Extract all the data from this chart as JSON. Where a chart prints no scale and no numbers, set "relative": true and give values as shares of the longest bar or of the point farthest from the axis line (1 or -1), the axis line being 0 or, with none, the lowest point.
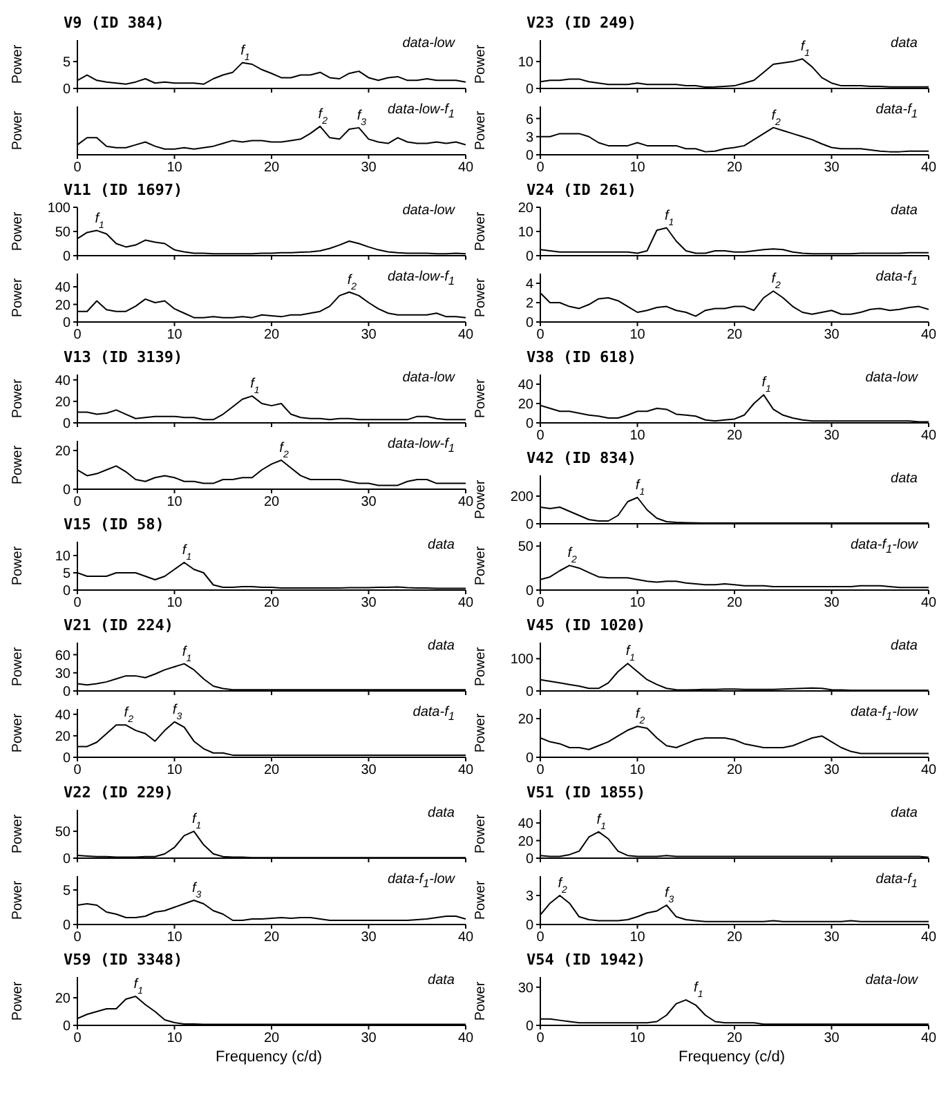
{
  "chart_data": [
    {
      "type": "line",
      "title": "V9 (ID 384)",
      "ylabel": "Power",
      "tick_labels": "y",
      "xlim": [
        0,
        40
      ],
      "xticks": [
        0,
        10,
        20,
        30,
        40
      ],
      "ylim": [
        0,
        9
      ],
      "yticks": [
        0,
        5
      ],
      "annotations": [
        "data-low",
        {
          "text": "f$_{1}$",
          "x": 17,
          "y": 4.8
        }
      ],
      "x": [
        0,
        1,
        2,
        3,
        4,
        5,
        6,
        7,
        8,
        9,
        10,
        11,
        12,
        13,
        14,
        15,
        16,
        17,
        18,
        19,
        20,
        21,
        22,
        23,
        24,
        25,
        26,
        27,
        28,
        29,
        30,
        31,
        32,
        33,
        34,
        35,
        36,
        37,
        38,
        39,
        40
      ],
      "color": "#000000",
      "values": [
        1.5,
        2.5,
        1.5,
        1.2,
        1,
        0.8,
        1.2,
        1.8,
        1,
        1.2,
        1,
        1,
        1,
        0.8,
        1.8,
        2.5,
        3,
        4.8,
        4.5,
        3.5,
        2.8,
        2,
        2,
        2.5,
        2.5,
        3,
        2,
        1.8,
        2.8,
        3.2,
        2,
        1.5,
        2,
        2.2,
        1.5,
        1.5,
        1.8,
        1.5,
        1.5,
        1.5,
        1.2
      ]
    },
    {
      "type": "line",
      "ylabel": "Power",
      "relative": true,
      "tick_labels": "x",
      "xlim": [
        0,
        40
      ],
      "xticks": [
        0,
        10,
        20,
        30,
        40
      ],
      "annotations": [
        "data-low-f$_{1}$",
        {
          "text": "f$_{2}$",
          "x": 25,
          "y": 1
        },
        {
          "text": "f$_{3}$",
          "x": 29,
          "y": 0.95
        }
      ],
      "x": [
        0,
        1,
        2,
        3,
        4,
        5,
        6,
        7,
        8,
        9,
        10,
        11,
        12,
        13,
        14,
        15,
        16,
        17,
        18,
        19,
        20,
        21,
        22,
        23,
        24,
        25,
        26,
        27,
        28,
        29,
        30,
        31,
        32,
        33,
        34,
        35,
        36,
        37,
        38,
        39,
        40
      ],
      "color": "#000000",
      "values": [
        0.35,
        0.6,
        0.6,
        0.3,
        0.25,
        0.25,
        0.35,
        0.45,
        0.3,
        0.2,
        0.2,
        0.25,
        0.2,
        0.25,
        0.3,
        0.4,
        0.5,
        0.45,
        0.5,
        0.5,
        0.45,
        0.45,
        0.5,
        0.55,
        0.75,
        1,
        0.6,
        0.55,
        0.9,
        0.95,
        0.55,
        0.45,
        0.4,
        0.6,
        0.45,
        0.4,
        0.4,
        0.45,
        0.4,
        0.45,
        0.35
      ]
    },
    {
      "type": "line",
      "title": "V11 (ID 1697)",
      "ylabel": "Power",
      "tick_labels": "y",
      "xlim": [
        0,
        40
      ],
      "xticks": [
        0,
        10,
        20,
        30,
        40
      ],
      "ylim": [
        0,
        100
      ],
      "yticks": [
        0,
        50,
        100
      ],
      "annotations": [
        "data-low",
        {
          "text": "f$_{1}$",
          "x": 2,
          "y": 52
        }
      ],
      "x": [
        0,
        1,
        2,
        3,
        4,
        5,
        6,
        7,
        8,
        9,
        10,
        11,
        12,
        13,
        14,
        15,
        16,
        17,
        18,
        19,
        20,
        21,
        22,
        23,
        24,
        25,
        26,
        27,
        28,
        29,
        30,
        31,
        32,
        33,
        34,
        35,
        36,
        37,
        38,
        39,
        40
      ],
      "color": "#000000",
      "values": [
        35,
        48,
        52,
        45,
        25,
        18,
        22,
        32,
        28,
        25,
        12,
        8,
        5,
        5,
        4,
        4,
        4,
        4,
        4,
        5,
        5,
        6,
        6,
        7,
        8,
        10,
        15,
        22,
        30,
        25,
        18,
        12,
        8,
        6,
        5,
        5,
        5,
        4,
        4,
        5,
        4
      ]
    },
    {
      "type": "line",
      "ylabel": "Power",
      "xlim": [
        0,
        40
      ],
      "xticks": [
        0,
        10,
        20,
        30,
        40
      ],
      "ylim": [
        0,
        55
      ],
      "yticks": [
        0,
        20,
        40
      ],
      "annotations": [
        "data-low-f$_{1}$",
        {
          "text": "f$_{2}$",
          "x": 28,
          "y": 34
        }
      ],
      "x": [
        0,
        1,
        2,
        3,
        4,
        5,
        6,
        7,
        8,
        9,
        10,
        11,
        12,
        13,
        14,
        15,
        16,
        17,
        18,
        19,
        20,
        21,
        22,
        23,
        24,
        25,
        26,
        27,
        28,
        29,
        30,
        31,
        32,
        33,
        34,
        35,
        36,
        37,
        38,
        39,
        40
      ],
      "color": "#000000",
      "values": [
        12,
        12,
        24,
        14,
        12,
        12,
        18,
        26,
        22,
        24,
        15,
        10,
        5,
        5,
        6,
        5,
        5,
        6,
        5,
        8,
        7,
        6,
        8,
        8,
        10,
        12,
        18,
        30,
        34,
        30,
        22,
        15,
        10,
        8,
        8,
        8,
        8,
        10,
        6,
        6,
        5
      ]
    },
    {
      "type": "line",
      "title": "V13 (ID 3139)",
      "ylabel": "Power",
      "tick_labels": "y",
      "xlim": [
        0,
        40
      ],
      "xticks": [
        0,
        10,
        20,
        30,
        40
      ],
      "ylim": [
        0,
        45
      ],
      "yticks": [
        0,
        20,
        40
      ],
      "annotations": [
        "data-low",
        {
          "text": "f$_{1}$",
          "x": 18,
          "y": 25
        }
      ],
      "x": [
        0,
        1,
        2,
        3,
        4,
        5,
        6,
        7,
        8,
        9,
        10,
        11,
        12,
        13,
        14,
        15,
        16,
        17,
        18,
        19,
        20,
        21,
        22,
        23,
        24,
        25,
        26,
        27,
        28,
        29,
        30,
        31,
        32,
        33,
        34,
        35,
        36,
        37,
        38,
        39,
        40
      ],
      "color": "#000000",
      "values": [
        10,
        10,
        8,
        9,
        12,
        8,
        4,
        5,
        6,
        6,
        6,
        5,
        5,
        3,
        3,
        8,
        15,
        22,
        25,
        18,
        16,
        18,
        8,
        5,
        4,
        4,
        3,
        4,
        4,
        3,
        3,
        3,
        3,
        3,
        3,
        6,
        6,
        4,
        3,
        3,
        3
      ]
    },
    {
      "type": "line",
      "ylabel": "Power",
      "xlim": [
        0,
        40
      ],
      "xticks": [
        0,
        10,
        20,
        30,
        40
      ],
      "ylim": [
        0,
        25
      ],
      "yticks": [
        0,
        20
      ],
      "annotations": [
        "data-low-f$_{1}$",
        {
          "text": "f$_{2}$",
          "x": 21,
          "y": 15
        }
      ],
      "x": [
        0,
        1,
        2,
        3,
        4,
        5,
        6,
        7,
        8,
        9,
        10,
        11,
        12,
        13,
        14,
        15,
        16,
        17,
        18,
        19,
        20,
        21,
        22,
        23,
        24,
        25,
        26,
        27,
        28,
        29,
        30,
        31,
        32,
        33,
        34,
        35,
        36,
        37,
        38,
        39,
        40
      ],
      "color": "#000000",
      "values": [
        10,
        7,
        8,
        10,
        12,
        9,
        5,
        4,
        6,
        7,
        6,
        4,
        4,
        3,
        3,
        5,
        5,
        6,
        6,
        10,
        13,
        15,
        11,
        7,
        5,
        5,
        5,
        5,
        4,
        3,
        3,
        2,
        2,
        2,
        4,
        5,
        5,
        3,
        3,
        3,
        3
      ]
    },
    {
      "type": "line",
      "title": "V15 (ID 58)",
      "ylabel": "Power",
      "xlim": [
        0,
        40
      ],
      "xticks": [
        0,
        10,
        20,
        30,
        40
      ],
      "ylim": [
        0,
        14
      ],
      "yticks": [
        0,
        5,
        10
      ],
      "annotations": [
        "data",
        {
          "text": "f$_{1}$",
          "x": 11,
          "y": 8
        }
      ],
      "x": [
        0,
        1,
        2,
        3,
        4,
        5,
        6,
        7,
        8,
        9,
        10,
        11,
        12,
        13,
        14,
        15,
        16,
        17,
        18,
        19,
        20,
        21,
        22,
        23,
        24,
        25,
        26,
        27,
        28,
        29,
        30,
        31,
        32,
        33,
        34,
        35,
        36,
        37,
        38,
        39,
        40
      ],
      "color": "#000000",
      "values": [
        5,
        4,
        4,
        4,
        5,
        5,
        5,
        4,
        3,
        4,
        6,
        8,
        6,
        5,
        1.5,
        0.8,
        0.8,
        1,
        1,
        0.8,
        0.8,
        0.6,
        0.6,
        0.6,
        0.6,
        0.6,
        0.6,
        0.6,
        0.7,
        0.7,
        0.7,
        0.8,
        0.8,
        0.9,
        0.7,
        0.6,
        0.6,
        0.5,
        0.5,
        0.5,
        0.5
      ]
    },
    {
      "type": "line",
      "title": "V21 (ID 224)",
      "ylabel": "Power",
      "tick_labels": "y",
      "xlim": [
        0,
        40
      ],
      "xticks": [
        0,
        10,
        20,
        30,
        40
      ],
      "ylim": [
        0,
        80
      ],
      "yticks": [
        0,
        30,
        60
      ],
      "annotations": [
        "data",
        {
          "text": "f$_{1}$",
          "x": 11,
          "y": 45
        }
      ],
      "x": [
        0,
        1,
        2,
        3,
        4,
        5,
        6,
        7,
        8,
        9,
        10,
        11,
        12,
        13,
        14,
        15,
        16,
        17,
        18,
        19,
        20,
        21,
        22,
        23,
        24,
        25,
        26,
        27,
        28,
        29,
        30,
        31,
        32,
        33,
        34,
        35,
        36,
        37,
        38,
        39,
        40
      ],
      "color": "#000000",
      "values": [
        12,
        10,
        12,
        15,
        20,
        25,
        25,
        22,
        28,
        35,
        40,
        45,
        35,
        20,
        8,
        4,
        2,
        2,
        2,
        2,
        2,
        2,
        2,
        2,
        2,
        2,
        2,
        2,
        2,
        2,
        2,
        2,
        2,
        2,
        2,
        2,
        2,
        2,
        2,
        2,
        2
      ]
    },
    {
      "type": "line",
      "ylabel": "Power",
      "xlim": [
        0,
        40
      ],
      "xticks": [
        0,
        10,
        20,
        30,
        40
      ],
      "ylim": [
        0,
        45
      ],
      "yticks": [
        0,
        20,
        40
      ],
      "annotations": [
        "data-f$_{1}$",
        {
          "text": "f$_{2}$",
          "x": 5,
          "y": 30
        },
        {
          "text": "f$_{3}$",
          "x": 10,
          "y": 33
        }
      ],
      "x": [
        0,
        1,
        2,
        3,
        4,
        5,
        6,
        7,
        8,
        9,
        10,
        11,
        12,
        13,
        14,
        15,
        16,
        17,
        18,
        19,
        20,
        21,
        22,
        23,
        24,
        25,
        26,
        27,
        28,
        29,
        30,
        31,
        32,
        33,
        34,
        35,
        36,
        37,
        38,
        39,
        40
      ],
      "color": "#000000",
      "values": [
        10,
        10,
        14,
        22,
        30,
        30,
        25,
        22,
        15,
        25,
        33,
        28,
        15,
        8,
        4,
        4,
        2,
        2,
        2,
        2,
        2,
        2,
        2,
        2,
        2,
        2,
        2,
        2,
        2,
        2,
        2,
        2,
        2,
        2,
        2,
        2,
        2,
        2,
        2,
        2,
        2
      ]
    },
    {
      "type": "line",
      "title": "V22 (ID 229)",
      "ylabel": "Power",
      "tick_labels": "y",
      "xlim": [
        0,
        40
      ],
      "xticks": [
        0,
        10,
        20,
        30,
        40
      ],
      "ylim": [
        0,
        90
      ],
      "yticks": [
        0,
        50
      ],
      "annotations": [
        "data",
        {
          "text": "f$_{1}$",
          "x": 12,
          "y": 50
        }
      ],
      "x": [
        0,
        1,
        2,
        3,
        4,
        5,
        6,
        7,
        8,
        9,
        10,
        11,
        12,
        13,
        14,
        15,
        16,
        17,
        18,
        19,
        20,
        21,
        22,
        23,
        24,
        25,
        26,
        27,
        28,
        29,
        30,
        31,
        32,
        33,
        34,
        35,
        36,
        37,
        38,
        39,
        40
      ],
      "color": "#000000",
      "values": [
        5,
        4,
        3,
        3,
        2,
        2,
        2,
        3,
        3,
        8,
        20,
        42,
        50,
        25,
        8,
        3,
        2,
        2,
        1,
        1,
        1,
        1,
        1,
        1,
        1,
        1,
        1,
        1,
        1,
        1,
        1,
        1,
        1,
        1,
        1,
        1,
        1,
        1,
        1,
        1,
        1
      ]
    },
    {
      "type": "line",
      "ylabel": "Power",
      "xlim": [
        0,
        40
      ],
      "xticks": [
        0,
        10,
        20,
        30,
        40
      ],
      "ylim": [
        0,
        7
      ],
      "yticks": [
        0,
        5
      ],
      "annotations": [
        "data-f$_{1}$-low",
        {
          "text": "f$_{3}$",
          "x": 12,
          "y": 3.5
        }
      ],
      "x": [
        0,
        1,
        2,
        3,
        4,
        5,
        6,
        7,
        8,
        9,
        10,
        11,
        12,
        13,
        14,
        15,
        16,
        17,
        18,
        19,
        20,
        21,
        22,
        23,
        24,
        25,
        26,
        27,
        28,
        29,
        30,
        31,
        32,
        33,
        34,
        35,
        36,
        37,
        38,
        39,
        40
      ],
      "color": "#000000",
      "values": [
        2.8,
        3,
        2.8,
        1.8,
        1.5,
        1,
        1,
        1.2,
        1.8,
        2,
        2.5,
        3,
        3.5,
        3,
        2,
        1.5,
        0.6,
        0.6,
        0.8,
        0.8,
        0.9,
        1,
        0.9,
        1,
        1,
        0.8,
        0.6,
        0.6,
        0.6,
        0.6,
        0.6,
        0.6,
        0.6,
        0.6,
        0.6,
        0.7,
        0.8,
        1,
        1.2,
        1.2,
        0.8
      ]
    },
    {
      "type": "line",
      "title": "V59 (ID 3348)",
      "ylabel": "Power",
      "xlabel": "Frequency (c/d)",
      "xlim": [
        0,
        40
      ],
      "xticks": [
        0,
        10,
        20,
        30,
        40
      ],
      "ylim": [
        0,
        35
      ],
      "yticks": [
        0,
        20
      ],
      "annotations": [
        "data",
        {
          "text": "f$_{1}$",
          "x": 6,
          "y": 21
        }
      ],
      "x": [
        0,
        1,
        2,
        3,
        4,
        5,
        6,
        7,
        8,
        9,
        10,
        11,
        12,
        13,
        14,
        15,
        16,
        17,
        18,
        19,
        20,
        21,
        22,
        23,
        24,
        25,
        26,
        27,
        28,
        29,
        30,
        31,
        32,
        33,
        34,
        35,
        36,
        37,
        38,
        39,
        40
      ],
      "color": "#000000",
      "values": [
        5,
        8,
        10,
        12,
        12,
        19,
        21,
        15,
        10,
        4,
        2,
        1,
        1,
        0.8,
        0.8,
        0.8,
        0.8,
        0.8,
        0.8,
        0.8,
        0.8,
        0.8,
        0.8,
        0.8,
        0.8,
        0.8,
        0.8,
        0.8,
        0.8,
        0.8,
        0.8,
        0.8,
        0.8,
        0.8,
        0.8,
        0.8,
        0.8,
        0.8,
        0.8,
        0.8,
        0.8
      ]
    },
    {
      "type": "line",
      "title": "V23 (ID 249)",
      "ylabel": "Power",
      "tick_labels": "y",
      "xlim": [
        0,
        40
      ],
      "xticks": [
        0,
        10,
        20,
        30,
        40
      ],
      "ylim": [
        0,
        18
      ],
      "yticks": [
        0,
        10
      ],
      "annotations": [
        "data",
        {
          "text": "f$_{1}$",
          "x": 27,
          "y": 11
        }
      ],
      "x": [
        0,
        1,
        2,
        3,
        4,
        5,
        6,
        7,
        8,
        9,
        10,
        11,
        12,
        13,
        14,
        15,
        16,
        17,
        18,
        19,
        20,
        21,
        22,
        23,
        24,
        25,
        26,
        27,
        28,
        29,
        30,
        31,
        32,
        33,
        34,
        35,
        36,
        37,
        38,
        39,
        40
      ],
      "color": "#000000",
      "values": [
        2.5,
        3,
        3,
        3.5,
        3.5,
        2.5,
        2,
        1.5,
        1.5,
        1.5,
        2,
        1.5,
        1.5,
        1.5,
        1.5,
        1,
        1,
        0.5,
        0.6,
        0.8,
        1,
        2,
        3,
        6,
        9,
        9.5,
        10,
        11,
        8,
        4,
        2,
        1,
        1,
        1,
        0.8,
        0.8,
        0.6,
        0.6,
        0.6,
        0.6,
        0.6
      ]
    },
    {
      "type": "line",
      "ylabel": "Power",
      "xlim": [
        0,
        40
      ],
      "xticks": [
        0,
        10,
        20,
        30,
        40
      ],
      "ylim": [
        0,
        8
      ],
      "yticks": [
        0,
        3,
        6
      ],
      "annotations": [
        "data-f$_{1}$",
        {
          "text": "f$_{2}$",
          "x": 24,
          "y": 4.5
        }
      ],
      "x": [
        0,
        1,
        2,
        3,
        4,
        5,
        6,
        7,
        8,
        9,
        10,
        11,
        12,
        13,
        14,
        15,
        16,
        17,
        18,
        19,
        20,
        21,
        22,
        23,
        24,
        25,
        26,
        27,
        28,
        29,
        30,
        31,
        32,
        33,
        34,
        35,
        36,
        37,
        38,
        39,
        40
      ],
      "color": "#000000",
      "values": [
        3,
        3,
        3.5,
        3.5,
        3.5,
        3,
        2,
        1.5,
        1.5,
        1.5,
        2,
        1.5,
        1.5,
        1.5,
        1.5,
        1,
        1,
        0.5,
        0.6,
        1,
        1.2,
        1.5,
        2.5,
        3.5,
        4.5,
        4,
        3.5,
        3,
        2.5,
        1.8,
        1.2,
        1,
        1,
        1,
        0.8,
        0.6,
        0.5,
        0.5,
        0.6,
        0.6,
        0.6
      ]
    },
    {
      "type": "line",
      "title": "V24 (ID 261)",
      "ylabel": "Power",
      "tick_labels": "y",
      "xlim": [
        0,
        40
      ],
      "xticks": [
        0,
        10,
        20,
        30,
        40
      ],
      "ylim": [
        0,
        20
      ],
      "yticks": [
        0,
        10,
        20
      ],
      "annotations": [
        "data",
        {
          "text": "f$_{1}$",
          "x": 13,
          "y": 11.5
        }
      ],
      "x": [
        0,
        1,
        2,
        3,
        4,
        5,
        6,
        7,
        8,
        9,
        10,
        11,
        12,
        13,
        14,
        15,
        16,
        17,
        18,
        19,
        20,
        21,
        22,
        23,
        24,
        25,
        26,
        27,
        28,
        29,
        30,
        31,
        32,
        33,
        34,
        35,
        36,
        37,
        38,
        39,
        40
      ],
      "color": "#000000",
      "values": [
        2.5,
        2,
        1.5,
        1.5,
        1.5,
        1.5,
        1.5,
        1.5,
        1.5,
        1.5,
        1,
        2,
        10.5,
        11.5,
        6,
        2,
        1,
        1,
        2,
        2,
        1.5,
        1.5,
        2,
        2.5,
        2.8,
        2.5,
        1.5,
        1,
        0.8,
        0.8,
        0.8,
        0.8,
        0.8,
        1,
        1,
        1,
        1,
        1,
        1.2,
        1.2,
        1.2
      ]
    },
    {
      "type": "line",
      "ylabel": "Power",
      "xlim": [
        0,
        40
      ],
      "xticks": [
        0,
        10,
        20,
        30,
        40
      ],
      "ylim": [
        0,
        5
      ],
      "yticks": [
        0,
        2,
        4
      ],
      "annotations": [
        "data-f$_{1}$",
        {
          "text": "f$_{2}$",
          "x": 24,
          "y": 3.2
        }
      ],
      "x": [
        0,
        1,
        2,
        3,
        4,
        5,
        6,
        7,
        8,
        9,
        10,
        11,
        12,
        13,
        14,
        15,
        16,
        17,
        18,
        19,
        20,
        21,
        22,
        23,
        24,
        25,
        26,
        27,
        28,
        29,
        30,
        31,
        32,
        33,
        34,
        35,
        36,
        37,
        38,
        39,
        40
      ],
      "color": "#000000",
      "values": [
        3,
        2,
        2,
        1.6,
        1.4,
        1.8,
        2.4,
        2.5,
        2.2,
        1.6,
        1,
        1.2,
        1.5,
        1.6,
        1.2,
        1,
        0.6,
        1.2,
        1.4,
        1.4,
        1.6,
        1.6,
        1.2,
        2.5,
        3.2,
        2.5,
        1.6,
        1,
        0.8,
        1,
        1.2,
        0.8,
        0.8,
        1,
        1.3,
        1.4,
        1.2,
        1.3,
        1.5,
        1.6,
        1.3
      ]
    },
    {
      "type": "line",
      "title": "V38 (ID 618)",
      "ylabel": "Power",
      "xlim": [
        0,
        40
      ],
      "xticks": [
        0,
        10,
        20,
        30,
        40
      ],
      "ylim": [
        0,
        50
      ],
      "yticks": [
        0,
        20,
        40
      ],
      "annotations": [
        "data-low",
        {
          "text": "f$_{1}$",
          "x": 23,
          "y": 29
        }
      ],
      "x": [
        0,
        1,
        2,
        3,
        4,
        5,
        6,
        7,
        8,
        9,
        10,
        11,
        12,
        13,
        14,
        15,
        16,
        17,
        18,
        19,
        20,
        21,
        22,
        23,
        24,
        25,
        26,
        27,
        28,
        29,
        30,
        31,
        32,
        33,
        34,
        35,
        36,
        37,
        38,
        39,
        40
      ],
      "color": "#000000",
      "values": [
        18,
        15,
        12,
        12,
        10,
        8,
        7,
        5,
        5,
        8,
        12,
        12,
        15,
        14,
        9,
        8,
        7,
        3,
        2,
        3,
        4,
        8,
        20,
        29,
        14,
        8,
        5,
        3,
        2,
        2,
        2,
        2,
        2,
        2,
        2,
        2,
        2,
        2,
        2,
        1,
        1
      ]
    },
    {
      "type": "line",
      "title": "V42 (ID 834)",
      "ylabel": "Power",
      "tick_labels": "y",
      "xlim": [
        0,
        40
      ],
      "xticks": [
        0,
        10,
        20,
        30,
        40
      ],
      "ylim": [
        0,
        350
      ],
      "yticks": [
        0,
        200
      ],
      "annotations": [
        "data",
        {
          "text": "f$_{1}$",
          "x": 10,
          "y": 190
        }
      ],
      "x": [
        0,
        1,
        2,
        3,
        4,
        5,
        6,
        7,
        8,
        9,
        10,
        11,
        12,
        13,
        14,
        15,
        16,
        17,
        18,
        19,
        20,
        21,
        22,
        23,
        24,
        25,
        26,
        27,
        28,
        29,
        30,
        31,
        32,
        33,
        34,
        35,
        36,
        37,
        38,
        39,
        40
      ],
      "color": "#000000",
      "values": [
        120,
        110,
        120,
        90,
        60,
        30,
        20,
        20,
        60,
        160,
        190,
        100,
        40,
        15,
        10,
        8,
        6,
        5,
        5,
        5,
        5,
        5,
        5,
        5,
        5,
        5,
        5,
        5,
        5,
        5,
        5,
        5,
        5,
        5,
        5,
        5,
        5,
        5,
        5,
        5,
        5
      ]
    },
    {
      "type": "line",
      "ylabel": "Power",
      "xlim": [
        0,
        40
      ],
      "xticks": [
        0,
        10,
        20,
        30,
        40
      ],
      "ylim": [
        0,
        55
      ],
      "yticks": [
        0,
        50
      ],
      "annotations": [
        "data-f$_{1}$-low",
        {
          "text": "f$_{2}$",
          "x": 3,
          "y": 28
        }
      ],
      "x": [
        0,
        1,
        2,
        3,
        4,
        5,
        6,
        7,
        8,
        9,
        10,
        11,
        12,
        13,
        14,
        15,
        16,
        17,
        18,
        19,
        20,
        21,
        22,
        23,
        24,
        25,
        26,
        27,
        28,
        29,
        30,
        31,
        32,
        33,
        34,
        35,
        36,
        37,
        38,
        39,
        40
      ],
      "color": "#000000",
      "values": [
        12,
        15,
        22,
        28,
        25,
        20,
        15,
        14,
        14,
        14,
        12,
        10,
        9,
        10,
        10,
        8,
        7,
        6,
        6,
        7,
        6,
        5,
        5,
        5,
        4,
        4,
        4,
        4,
        4,
        4,
        4,
        4,
        4,
        5,
        5,
        5,
        4,
        3,
        3,
        3,
        3
      ]
    },
    {
      "type": "line",
      "title": "V45 (ID 1020)",
      "ylabel": "Power",
      "tick_labels": "y",
      "xlim": [
        0,
        40
      ],
      "xticks": [
        0,
        10,
        20,
        30,
        40
      ],
      "ylim": [
        0,
        150
      ],
      "yticks": [
        0,
        100
      ],
      "annotations": [
        "data",
        {
          "text": "f$_{1}$",
          "x": 9,
          "y": 85
        }
      ],
      "x": [
        0,
        1,
        2,
        3,
        4,
        5,
        6,
        7,
        8,
        9,
        10,
        11,
        12,
        13,
        14,
        15,
        16,
        17,
        18,
        19,
        20,
        21,
        22,
        23,
        24,
        25,
        26,
        27,
        28,
        29,
        30,
        31,
        32,
        33,
        34,
        35,
        36,
        37,
        38,
        39,
        40
      ],
      "color": "#000000",
      "values": [
        35,
        30,
        25,
        20,
        15,
        8,
        8,
        25,
        60,
        85,
        60,
        35,
        20,
        8,
        4,
        3,
        4,
        5,
        5,
        6,
        6,
        5,
        5,
        5,
        5,
        6,
        7,
        8,
        9,
        8,
        4,
        3,
        2,
        2,
        2,
        2,
        2,
        2,
        2,
        2,
        2
      ]
    },
    {
      "type": "line",
      "ylabel": "Power",
      "xlim": [
        0,
        40
      ],
      "xticks": [
        0,
        10,
        20,
        30,
        40
      ],
      "ylim": [
        0,
        25
      ],
      "yticks": [
        0,
        20
      ],
      "annotations": [
        "data-f$_{1}$-low",
        {
          "text": "f$_{2}$",
          "x": 10,
          "y": 16
        }
      ],
      "x": [
        0,
        1,
        2,
        3,
        4,
        5,
        6,
        7,
        8,
        9,
        10,
        11,
        12,
        13,
        14,
        15,
        16,
        17,
        18,
        19,
        20,
        21,
        22,
        23,
        24,
        25,
        26,
        27,
        28,
        29,
        30,
        31,
        32,
        33,
        34,
        35,
        36,
        37,
        38,
        39,
        40
      ],
      "color": "#000000",
      "values": [
        10,
        8,
        7,
        5,
        5,
        4,
        6,
        8,
        11,
        14,
        16,
        15,
        10,
        6,
        5,
        7,
        9,
        10,
        10,
        10,
        9,
        7,
        6,
        5,
        5,
        5,
        6,
        8,
        10,
        11,
        8,
        5,
        3,
        2,
        2,
        2,
        2,
        2,
        2,
        2,
        2
      ]
    },
    {
      "type": "line",
      "title": "V51 (ID 1855)",
      "ylabel": "Power",
      "tick_labels": "y",
      "xlim": [
        0,
        40
      ],
      "xticks": [
        0,
        10,
        20,
        30,
        40
      ],
      "ylim": [
        0,
        55
      ],
      "yticks": [
        0,
        20,
        40
      ],
      "annotations": [
        "data",
        {
          "text": "f$_{1}$",
          "x": 6,
          "y": 30
        }
      ],
      "x": [
        0,
        1,
        2,
        3,
        4,
        5,
        6,
        7,
        8,
        9,
        10,
        11,
        12,
        13,
        14,
        15,
        16,
        17,
        18,
        19,
        20,
        21,
        22,
        23,
        24,
        25,
        26,
        27,
        28,
        29,
        30,
        31,
        32,
        33,
        34,
        35,
        36,
        37,
        38,
        39,
        40
      ],
      "color": "#000000",
      "values": [
        3,
        2,
        2,
        4,
        8,
        24,
        30,
        22,
        8,
        3,
        2,
        2,
        2,
        3,
        2,
        2,
        2,
        2,
        2,
        2,
        2,
        2,
        2,
        2,
        2,
        2,
        2,
        2,
        2,
        2,
        2,
        2,
        2,
        2,
        2,
        2,
        2,
        2,
        2,
        2,
        1
      ]
    },
    {
      "type": "line",
      "ylabel": "Power",
      "xlim": [
        0,
        40
      ],
      "xticks": [
        0,
        10,
        20,
        30,
        40
      ],
      "ylim": [
        0,
        5
      ],
      "yticks": [
        0,
        3
      ],
      "annotations": [
        "data-f$_{1}$",
        {
          "text": "f$_{2}$",
          "x": 2,
          "y": 3
        },
        {
          "text": "f$_{3}$",
          "x": 13,
          "y": 2
        }
      ],
      "x": [
        0,
        1,
        2,
        3,
        4,
        5,
        6,
        7,
        8,
        9,
        10,
        11,
        12,
        13,
        14,
        15,
        16,
        17,
        18,
        19,
        20,
        21,
        22,
        23,
        24,
        25,
        26,
        27,
        28,
        29,
        30,
        31,
        32,
        33,
        34,
        35,
        36,
        37,
        38,
        39,
        40
      ],
      "color": "#000000",
      "values": [
        1,
        2.2,
        3,
        2.2,
        0.8,
        0.5,
        0.4,
        0.4,
        0.4,
        0.5,
        0.8,
        1.2,
        1.4,
        2,
        0.8,
        0.5,
        0.4,
        0.3,
        0.3,
        0.3,
        0.3,
        0.3,
        0.3,
        0.3,
        0.4,
        0.3,
        0.3,
        0.3,
        0.3,
        0.3,
        0.3,
        0.3,
        0.4,
        0.3,
        0.3,
        0.3,
        0.3,
        0.3,
        0.3,
        0.3,
        0.3
      ]
    },
    {
      "type": "line",
      "title": "V54 (ID 1942)",
      "ylabel": "Power",
      "xlabel": "Frequency (c/d)",
      "xlim": [
        0,
        40
      ],
      "xticks": [
        0,
        10,
        20,
        30,
        40
      ],
      "ylim": [
        0,
        38
      ],
      "yticks": [
        0,
        30
      ],
      "annotations": [
        "data-low",
        {
          "text": "f$_{1}$",
          "x": 16,
          "y": 20
        }
      ],
      "x": [
        0,
        1,
        2,
        3,
        4,
        5,
        6,
        7,
        8,
        9,
        10,
        11,
        12,
        13,
        14,
        15,
        16,
        17,
        18,
        19,
        20,
        21,
        22,
        23,
        24,
        25,
        26,
        27,
        28,
        29,
        30,
        31,
        32,
        33,
        34,
        35,
        36,
        37,
        38,
        39,
        40
      ],
      "color": "#000000",
      "values": [
        5,
        5,
        4,
        3,
        2,
        2,
        2,
        2,
        2,
        2,
        2,
        2,
        3,
        8,
        17,
        20,
        16,
        8,
        3,
        2,
        2,
        2,
        2,
        1,
        1,
        1,
        1,
        1,
        1,
        1,
        1,
        1,
        1,
        1,
        1,
        1,
        1,
        1,
        1,
        1,
        1
      ]
    }
  ]
}
